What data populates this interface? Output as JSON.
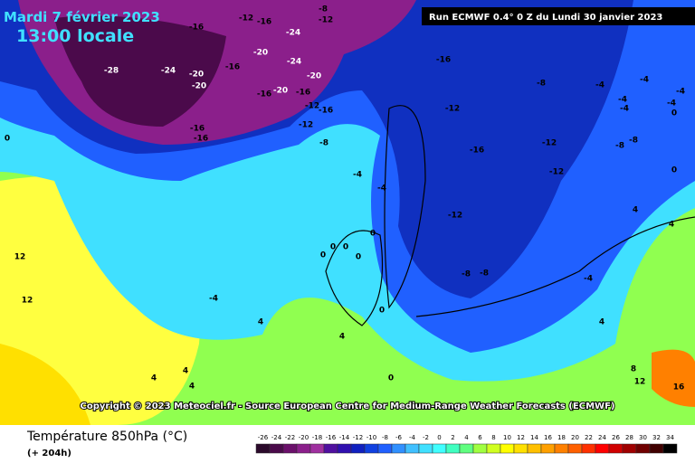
{
  "header": {
    "date": "Mardi 7 février 2023",
    "time": "13:00 locale",
    "run": "Run ECMWF 0.4° 0 Z du Lundi 30 janvier 2023"
  },
  "copyright": "Copyright © 2023 Meteociel.fr - Source European Centre for Medium-Range Weather Forecasts (ECMWF)",
  "footer": {
    "title": "Température 850hPa (°C)",
    "lead": "(+ 204h)"
  },
  "map_labels": [
    -16,
    -12,
    -16,
    -8,
    -12,
    -24,
    -20,
    -24,
    -16,
    -24,
    -28,
    -20,
    -20,
    -20,
    -16,
    -20,
    -16,
    -16,
    -8,
    -4,
    -4,
    -4,
    -4,
    -4,
    -4,
    0,
    -12,
    -12,
    -16,
    -16,
    -16,
    -12,
    -8,
    -12,
    -16,
    -8,
    -8,
    -12,
    0,
    -4,
    -4,
    -12,
    0,
    0,
    0,
    0,
    0,
    0,
    -8,
    -8,
    -4,
    -4,
    0,
    4,
    4,
    4,
    4,
    4,
    4,
    0,
    12,
    12,
    8,
    12,
    16,
    4,
    4
  ],
  "scale": {
    "ticks": [
      -26,
      -24,
      -22,
      -20,
      -18,
      -16,
      -14,
      -12,
      -10,
      -8,
      -6,
      -4,
      -2,
      0,
      2,
      4,
      6,
      8,
      10,
      12,
      14,
      16,
      18,
      20,
      22,
      24,
      26,
      28,
      30,
      32,
      34
    ],
    "colors": [
      "#2b0a2b",
      "#4b0a4b",
      "#6b106b",
      "#8b1f8b",
      "#a030a0",
      "#5010a0",
      "#3010b0",
      "#1020c0",
      "#1040e0",
      "#2060ff",
      "#3090ff",
      "#40c0ff",
      "#40e0ff",
      "#40ffff",
      "#40ffc0",
      "#60ff80",
      "#a0ff40",
      "#d0ff20",
      "#ffff00",
      "#ffe000",
      "#ffc000",
      "#ffa000",
      "#ff8000",
      "#ff6000",
      "#ff3000",
      "#ff0000",
      "#d00000",
      "#a00000",
      "#700000",
      "#400000",
      "#000000"
    ]
  }
}
